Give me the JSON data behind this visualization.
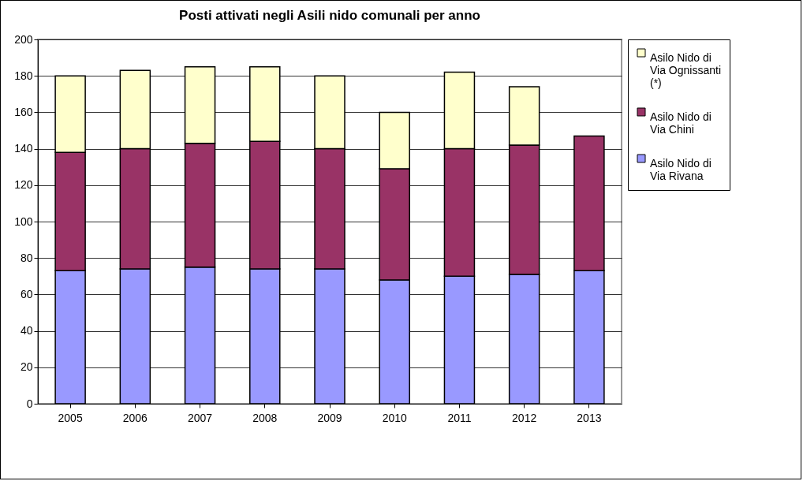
{
  "chart_data": {
    "type": "bar",
    "title": "Posti attivati negli Asili nido comunali per anno",
    "categories": [
      "2005",
      "2006",
      "2007",
      "2008",
      "2009",
      "2010",
      "2011",
      "2012",
      "2013"
    ],
    "stacked": true,
    "series": [
      {
        "name": "Asilo Nido di Via Rivana",
        "color": "#9999ff",
        "values": [
          73,
          74,
          75,
          74,
          74,
          68,
          70,
          71,
          73
        ]
      },
      {
        "name": "Asilo Nido di Via Chini",
        "color": "#993366",
        "values": [
          65,
          66,
          68,
          70,
          66,
          61,
          70,
          71,
          74
        ]
      },
      {
        "name": "Asilo Nido di Via Ognissanti (*)",
        "color": "#ffffcc",
        "values": [
          42,
          43,
          42,
          41,
          40,
          31,
          42,
          32,
          null
        ]
      }
    ],
    "ylim": [
      0,
      200
    ],
    "yticks": [
      0,
      20,
      40,
      60,
      80,
      100,
      120,
      140,
      160,
      180,
      200
    ],
    "grid": "y",
    "legend": "right"
  }
}
